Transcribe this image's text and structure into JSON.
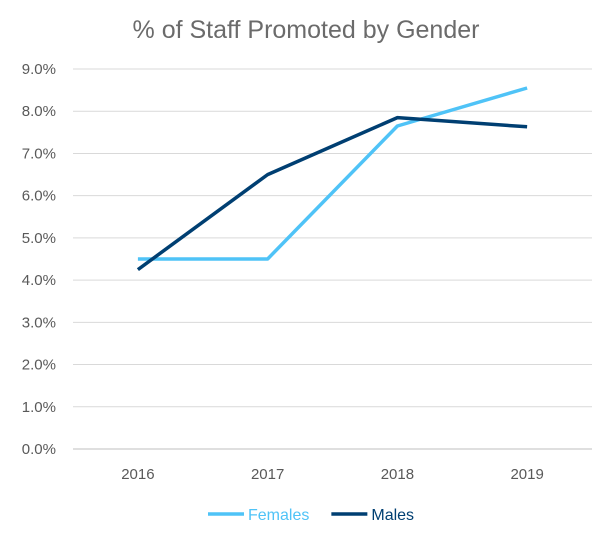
{
  "chart_data": {
    "type": "line",
    "title": "% of Staff Promoted by Gender",
    "xlabel": "",
    "ylabel": "",
    "categories": [
      "2016",
      "2017",
      "2018",
      "2019"
    ],
    "y_ticks": [
      "0.0%",
      "1.0%",
      "2.0%",
      "3.0%",
      "4.0%",
      "5.0%",
      "6.0%",
      "7.0%",
      "8.0%",
      "9.0%"
    ],
    "ylim": [
      0,
      9
    ],
    "grid": true,
    "legend_position": "bottom",
    "series": [
      {
        "name": "Females",
        "color": "#4fc3f7",
        "values": [
          4.5,
          4.5,
          7.65,
          8.55
        ]
      },
      {
        "name": "Males",
        "color": "#003f72",
        "values": [
          4.25,
          6.5,
          7.85,
          7.63
        ]
      }
    ],
    "grid_color": "#d9d9d9",
    "axis_color": "#bfbfbf"
  }
}
